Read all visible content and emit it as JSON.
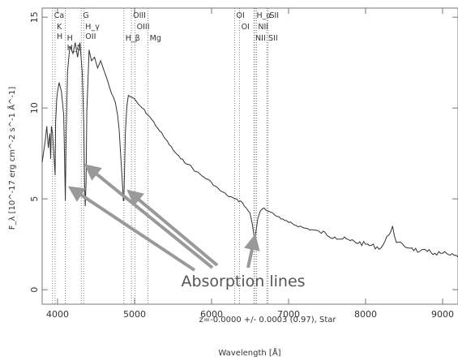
{
  "chart_data": {
    "type": "line",
    "title": "",
    "xlabel": "Wavelength [Å]",
    "ylabel": "F_λ [10^-17 erg cm^-2 s^-1 Å^-1]",
    "xlim": [
      3800,
      9200
    ],
    "ylim": [
      -0.8,
      15.5
    ],
    "x_ticks": [
      4000,
      5000,
      6000,
      7000,
      8000,
      9000
    ],
    "y_ticks": [
      0,
      5,
      10,
      15
    ],
    "grid": false,
    "series": [
      {
        "x": [
          3800,
          3840,
          3860,
          3880,
          3900,
          3910,
          3920,
          3935,
          3950,
          3968,
          3975,
          3990,
          4000,
          4020,
          4050,
          4080,
          4090,
          4101,
          4110,
          4130,
          4160,
          4200,
          4230,
          4260,
          4290,
          4320,
          4340,
          4350,
          4360,
          4370,
          4380,
          4410,
          4440,
          4480,
          4520,
          4560,
          4600,
          4650,
          4700,
          4750,
          4780,
          4800,
          4820,
          4840,
          4855,
          4861,
          4868,
          4880,
          4900,
          4920,
          4950,
          5000,
          5050,
          5100,
          5200,
          5300,
          5400,
          5500,
          5600,
          5700,
          5800,
          5900,
          6000,
          6100,
          6200,
          6300,
          6400,
          6450,
          6500,
          6530,
          6550,
          6563,
          6580,
          6600,
          6630,
          6680,
          6700,
          6750,
          6800,
          6900,
          7000,
          7200,
          7400,
          7600,
          7800,
          8000,
          8200,
          8300,
          8350,
          8400,
          8500,
          8600,
          8700,
          8800,
          8900,
          9000,
          9100,
          9200
        ],
        "values": [
          7.0,
          8.2,
          9.0,
          7.8,
          8.6,
          7.2,
          9.0,
          8.6,
          7.6,
          6.3,
          9.2,
          10.5,
          10.9,
          11.4,
          10.9,
          9.6,
          7.6,
          4.9,
          8.3,
          12.0,
          13.4,
          13.0,
          13.6,
          12.8,
          13.6,
          12.0,
          9.2,
          5.8,
          4.6,
          6.0,
          9.8,
          13.2,
          12.6,
          12.8,
          12.2,
          12.6,
          12.1,
          11.5,
          10.8,
          10.3,
          9.6,
          8.8,
          7.4,
          6.0,
          4.9,
          4.9,
          6.3,
          8.6,
          10.1,
          10.7,
          10.6,
          10.5,
          10.2,
          10.0,
          9.5,
          8.9,
          8.3,
          7.7,
          7.2,
          6.9,
          6.5,
          6.2,
          5.9,
          5.5,
          5.2,
          5.0,
          4.8,
          4.5,
          4.2,
          3.6,
          3.0,
          2.8,
          3.3,
          3.9,
          4.3,
          4.5,
          4.4,
          4.3,
          4.2,
          3.9,
          3.7,
          3.4,
          3.2,
          2.9,
          2.7,
          2.5,
          2.3,
          3.0,
          3.5,
          2.6,
          2.4,
          2.3,
          2.1,
          2.1,
          2.0,
          2.0,
          1.9,
          1.8
        ]
      }
    ],
    "line_markers": [
      {
        "x": 3934,
        "labels": [
          "Ca"
        ]
      },
      {
        "x": 3968,
        "labels": [
          "K",
          "H"
        ]
      },
      {
        "x": 4101,
        "labels": [
          "H",
          "H_δ"
        ]
      },
      {
        "x": 4308,
        "labels": [
          "G"
        ]
      },
      {
        "x": 4340,
        "labels": [
          "H_γ",
          "OII"
        ]
      },
      {
        "x": 4861,
        "labels": [
          "H_β"
        ]
      },
      {
        "x": 4959,
        "labels": [
          "OIII"
        ]
      },
      {
        "x": 5007,
        "labels": [
          "OIII"
        ]
      },
      {
        "x": 5175,
        "labels": [
          "Mg"
        ]
      },
      {
        "x": 6300,
        "labels": [
          "OI"
        ]
      },
      {
        "x": 6364,
        "labels": [
          "OI"
        ]
      },
      {
        "x": 6548,
        "labels": [
          "NII"
        ]
      },
      {
        "x": 6563,
        "labels": [
          "H_α"
        ]
      },
      {
        "x": 6583,
        "labels": [
          "NII"
        ]
      },
      {
        "x": 6716,
        "labels": [
          "SII"
        ]
      },
      {
        "x": 6731,
        "labels": [
          "SII"
        ]
      }
    ],
    "annotations": {
      "absorption": "Absorption lines",
      "redshift": "z=-0.0000 +/- 0.0003 (0.97), Star"
    }
  }
}
